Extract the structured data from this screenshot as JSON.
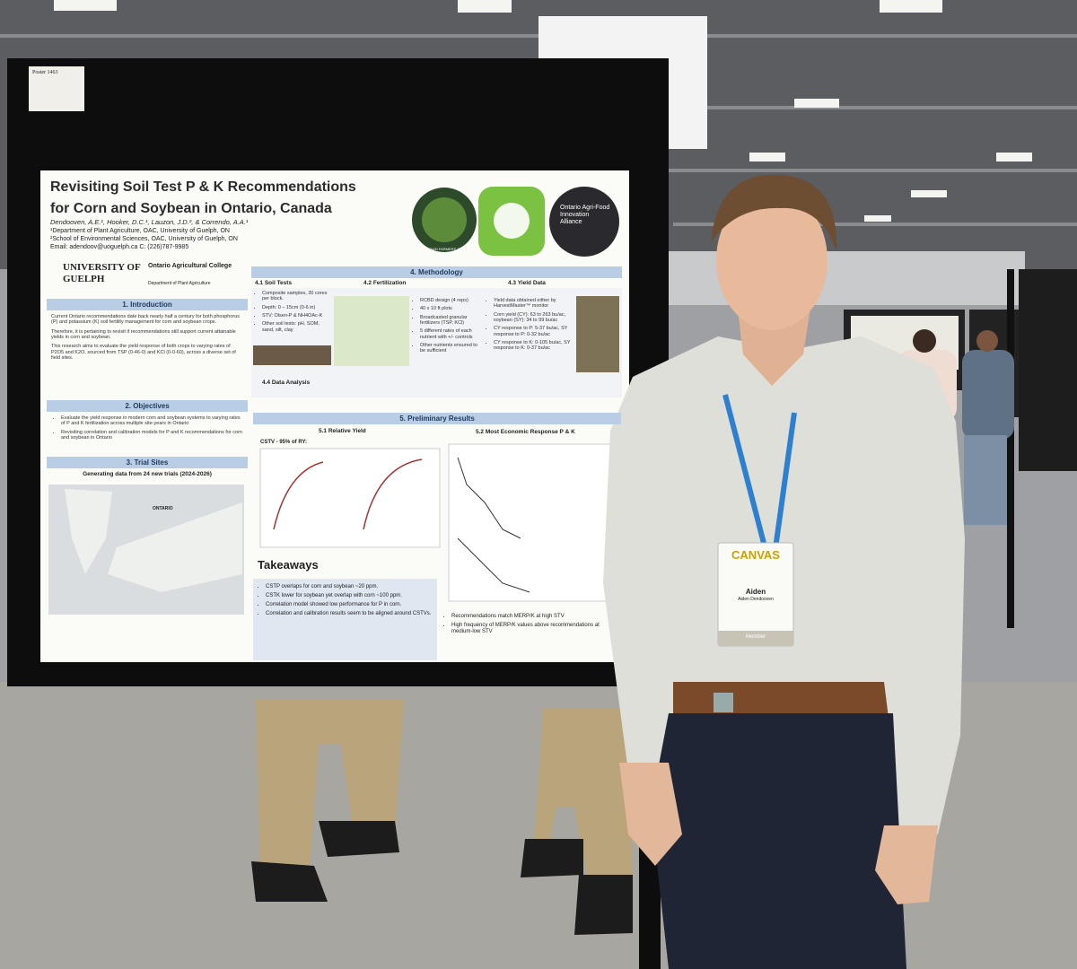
{
  "poster_board": {
    "tag": "Poster 1463"
  },
  "poster": {
    "title_line1": "Revisiting Soil Test P & K Recommendations",
    "title_line2": "for Corn and Soybean in Ontario, Canada",
    "authors": "Dendooven, A.E.¹, Hooker, D.C.¹, Lauzon, J.D.², & Correndo, A.A.¹",
    "affiliation1": "¹Department of Plant Agriculture, OAC, University of Guelph, ON",
    "affiliation2": "²School of Environmental Sciences, OAC, University of Guelph, ON",
    "email": "Email: adendoov@uoguelph.ca C: (226)787-9985",
    "logos": {
      "grain_farmers": "GRAIN FARMERS OF ONTARIO",
      "alliance": "Ontario Agri-Food Innovation Alliance",
      "university": "UNIVERSITY OF GUELPH",
      "college": "Ontario Agricultural College",
      "department": "Department of Plant Agriculture"
    },
    "sections": {
      "introduction": "1. Introduction",
      "objectives": "2. Objectives",
      "trial_sites": "3. Trial Sites",
      "methodology": "4. Methodology",
      "soil_tests": "4.1 Soil Tests",
      "fertilization": "4.2 Fertilization",
      "yield_data": "4.3 Yield Data",
      "data_analysis": "4.4 Data Analysis",
      "results": "5. Preliminary Results",
      "relative_yield": "5.1 Relative Yield",
      "economic": "5.2 Most Economic Response P & K",
      "takeaways": "Takeaways"
    },
    "introduction_text": [
      "Current Ontario recommendations date back nearly half a century for both phosphorus (P) and potassium (K) soil fertility management for corn and soybean crops.",
      "Therefore, it is pertaining to revisit if recommendations still support current attainable yields in corn and soybean.",
      "This research aims to evaluate the yield response of both crops to varying rates of P2O5 and K2O, sourced from TSP (0-46-0) and KCl (0-0-60), across a diverse set of field sites."
    ],
    "objectives_text": [
      "Evaluate the yield response in modern corn and soybean systems to varying rates of P and K fertilization across multiple site-years in Ontario",
      "Revisiting correlation and calibration models for P and K recommendations for corn and soybean in Ontario"
    ],
    "trial_sites_subtitle": "Generating data from 24 new trials (2024-2026)",
    "map_label": "ONTARIO",
    "soil_tests_text": [
      "Composite samples, 30 cores per block.",
      "Depth: 0 – 15cm (0-6 in)",
      "STV: Olsen-P & NH4OAc-K",
      "Other soil tests: pH, SOM, sand, silt, clay"
    ],
    "fertilization_text": [
      "RCBD design (4 reps)",
      "40 x 10 ft plots",
      "Broadcasted granular fertilizers (TSP, KCl)",
      "5 different rates of each nutrient with +/- controls",
      "Other nutrients ensured to be sufficient"
    ],
    "yield_text": [
      "Yield data obtained either by HarvestMaster™ monitor",
      "Corn yield (CY): 63 to 263 bu/ac, soybean (SY): 34 to 99 bu/ac",
      "CY response to P: 5-37 bu/ac, SY response to P: 0-32 bu/ac",
      "CY response to K: 0-105 bu/ac, SY response to K: 0-37 bu/ac"
    ],
    "cstv_label": "CSTV - 95% of RY:",
    "takeaways_text": [
      "CSTP overlaps for corn and soybean ~20 ppm.",
      "CSTK lower for soybean yet overlap with corn ~100 ppm.",
      "Correlation model showed low performance for P in corn.",
      "Correlation and calibration results seem to be aligned around CSTVs."
    ],
    "results_notes": [
      "Recommendations match MERP/K at high STV",
      "High frequency of MERP/K values above recommendations at medium-low STV"
    ]
  },
  "badge": {
    "brand": "CANVAS",
    "first_name": "Aiden",
    "full_name": "Aiden Dendooven",
    "role": "Member"
  }
}
